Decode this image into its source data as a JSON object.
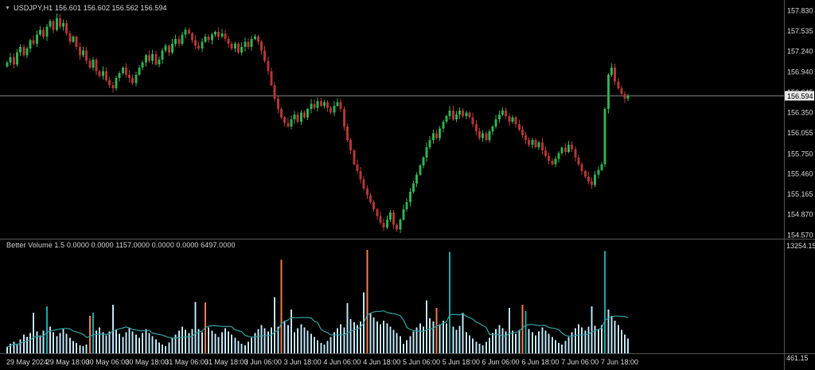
{
  "window": {
    "symbol_title": "USDJPY,H1 156.601 156.602 156.562 156.594",
    "symbol_marker": "▼"
  },
  "price_axis": {
    "labels": [
      "157.830",
      "157.535",
      "157.240",
      "156.940",
      "156.645",
      "156.350",
      "156.055",
      "155.750",
      "155.460",
      "155.165",
      "154.870",
      "154.570"
    ],
    "current_price": "156.594"
  },
  "volume_panel": {
    "title": "Better Volume 1.5 0.0000 0.0000 1157.0000 0.0000 0.0000 6497.0000",
    "axis_max": "13254.15",
    "axis_min": "461.15"
  },
  "time_axis": {
    "labels": [
      "29 May 2024",
      "29 May 18:00",
      "30 May 06:00",
      "30 May 18:00",
      "31 May 06:00",
      "31 May 18:00",
      "3 Jun 06:00",
      "3 Jun 18:00",
      "4 Jun 06:00",
      "4 Jun 18:00",
      "5 Jun 06:00",
      "5 Jun 18:00",
      "6 Jun 06:00",
      "6 Jun 18:00",
      "7 Jun 06:00",
      "7 Jun 18:00"
    ],
    "bars_per_label": 12
  },
  "chart_data": {
    "type": "candlestick",
    "symbol": "USDJPY",
    "timeframe": "H1",
    "title": "USDJPY,H1",
    "current_price": 156.594,
    "ohlc_last": {
      "open": 156.601,
      "high": 156.602,
      "low": 156.562,
      "close": 156.594
    },
    "price_axis_range": [
      154.52,
      157.984
    ],
    "first_open": 157.02,
    "closes": [
      157.08,
      157.15,
      157.05,
      157.22,
      157.3,
      157.18,
      157.28,
      157.4,
      157.35,
      157.48,
      157.55,
      157.45,
      157.6,
      157.68,
      157.55,
      157.72,
      157.6,
      157.65,
      157.5,
      157.38,
      157.45,
      157.3,
      157.18,
      157.25,
      157.1,
      157.0,
      157.12,
      156.95,
      156.88,
      156.95,
      156.82,
      156.75,
      156.7,
      156.85,
      156.92,
      157.0,
      156.9,
      156.85,
      156.78,
      156.9,
      157.0,
      157.08,
      157.18,
      157.1,
      157.2,
      157.05,
      157.12,
      157.25,
      157.32,
      157.22,
      157.35,
      157.42,
      157.35,
      157.48,
      157.55,
      157.5,
      157.4,
      157.32,
      157.28,
      157.38,
      157.45,
      157.4,
      157.48,
      157.52,
      157.45,
      157.5,
      157.42,
      157.35,
      157.28,
      157.35,
      157.22,
      157.3,
      157.38,
      157.3,
      157.42,
      157.45,
      157.38,
      157.25,
      157.1,
      156.95,
      156.75,
      156.55,
      156.4,
      156.28,
      156.2,
      156.15,
      156.25,
      156.32,
      156.22,
      156.35,
      156.28,
      156.4,
      156.48,
      156.42,
      156.52,
      156.45,
      156.5,
      156.42,
      156.35,
      156.45,
      156.5,
      156.4,
      156.15,
      155.95,
      155.8,
      155.6,
      155.5,
      155.38,
      155.25,
      155.15,
      155.05,
      154.95,
      154.85,
      154.75,
      154.68,
      154.8,
      154.9,
      154.72,
      154.65,
      154.8,
      154.95,
      155.05,
      155.2,
      155.32,
      155.45,
      155.58,
      155.7,
      155.85,
      155.95,
      156.05,
      155.98,
      156.12,
      156.22,
      156.3,
      156.38,
      156.25,
      156.32,
      156.38,
      156.3,
      156.35,
      156.28,
      156.18,
      156.08,
      155.98,
      156.05,
      155.95,
      156.08,
      156.15,
      156.25,
      156.32,
      156.38,
      156.3,
      156.22,
      156.28,
      156.18,
      156.1,
      156.02,
      155.95,
      155.88,
      155.95,
      155.85,
      155.92,
      155.8,
      155.72,
      155.65,
      155.6,
      155.68,
      155.76,
      155.84,
      155.78,
      155.88,
      155.82,
      155.7,
      155.6,
      155.5,
      155.42,
      155.35,
      155.3,
      155.45,
      155.52,
      155.6,
      156.4,
      156.9,
      157.0,
      156.8,
      156.7,
      156.62,
      156.55,
      156.594
    ],
    "volumes": [
      800,
      1200,
      1500,
      1100,
      1800,
      2400,
      2100,
      2600,
      5200,
      2800,
      2300,
      2900,
      6000,
      3400,
      2700,
      2200,
      2600,
      3100,
      2500,
      2000,
      1600,
      1300,
      1000,
      900,
      1100,
      4800,
      5200,
      2900,
      3300,
      2700,
      2300,
      2800,
      6200,
      3000,
      2500,
      2100,
      2700,
      3200,
      2800,
      2400,
      2000,
      2600,
      3100,
      2600,
      2200,
      1800,
      1400,
      1100,
      900,
      1400,
      1900,
      2400,
      2900,
      3400,
      3000,
      2600,
      3100,
      6600,
      3100,
      2700,
      6500,
      3300,
      2900,
      2500,
      2100,
      2700,
      3200,
      2800,
      2400,
      2000,
      1600,
      1200,
      1000,
      1500,
      2000,
      2600,
      3100,
      3600,
      3200,
      2800,
      3300,
      7200,
      3400,
      12000,
      4200,
      3600,
      5600,
      2700,
      3200,
      3700,
      3300,
      2900,
      2500,
      2100,
      1700,
      1300,
      1100,
      1600,
      2100,
      2700,
      3200,
      3700,
      3300,
      6400,
      4400,
      4000,
      3600,
      4100,
      7800,
      13254,
      5200,
      4600,
      4100,
      3700,
      4200,
      3800,
      3400,
      3000,
      2600,
      2200,
      1200,
      1700,
      2200,
      2800,
      3300,
      3800,
      3400,
      6800,
      4500,
      4100,
      5800,
      3700,
      4200,
      3800,
      13000,
      3400,
      3000,
      3500,
      5200,
      2700,
      2300,
      1900,
      1500,
      1200,
      1000,
      1500,
      2000,
      2600,
      3100,
      3600,
      3200,
      2800,
      5800,
      2900,
      2500,
      3000,
      6200,
      5400,
      3100,
      2700,
      2300,
      2800,
      3300,
      2900,
      2500,
      2100,
      1700,
      1300,
      1100,
      1600,
      2100,
      2700,
      3200,
      3700,
      3300,
      2900,
      3400,
      6000,
      3500,
      3100,
      3600,
      13100,
      5600,
      4800,
      4200,
      3600,
      3000,
      2400,
      1900
    ],
    "volume_axis_max_value": 13254.15,
    "volume_colors": {
      "climax_indices": [
        25,
        60,
        83,
        109,
        130,
        156
      ],
      "churn_indices": [
        12,
        26,
        134,
        157,
        181
      ]
    },
    "colors": {
      "up": "#2eae4f",
      "down": "#b23434",
      "volume_normal": "#b9dff0",
      "volume_climax": "#f0794a",
      "volume_churn": "#19a3a3",
      "volume_ma": "#2f9e9e",
      "current_price_line": "#9b9b9b",
      "separator": "#4f4f4f",
      "price_tag_bg": "#e8e8e8"
    },
    "indicator": {
      "name": "Better Volume 1.5",
      "values": [
        0.0,
        0.0,
        1157.0,
        0.0,
        0.0,
        6497.0
      ]
    }
  }
}
